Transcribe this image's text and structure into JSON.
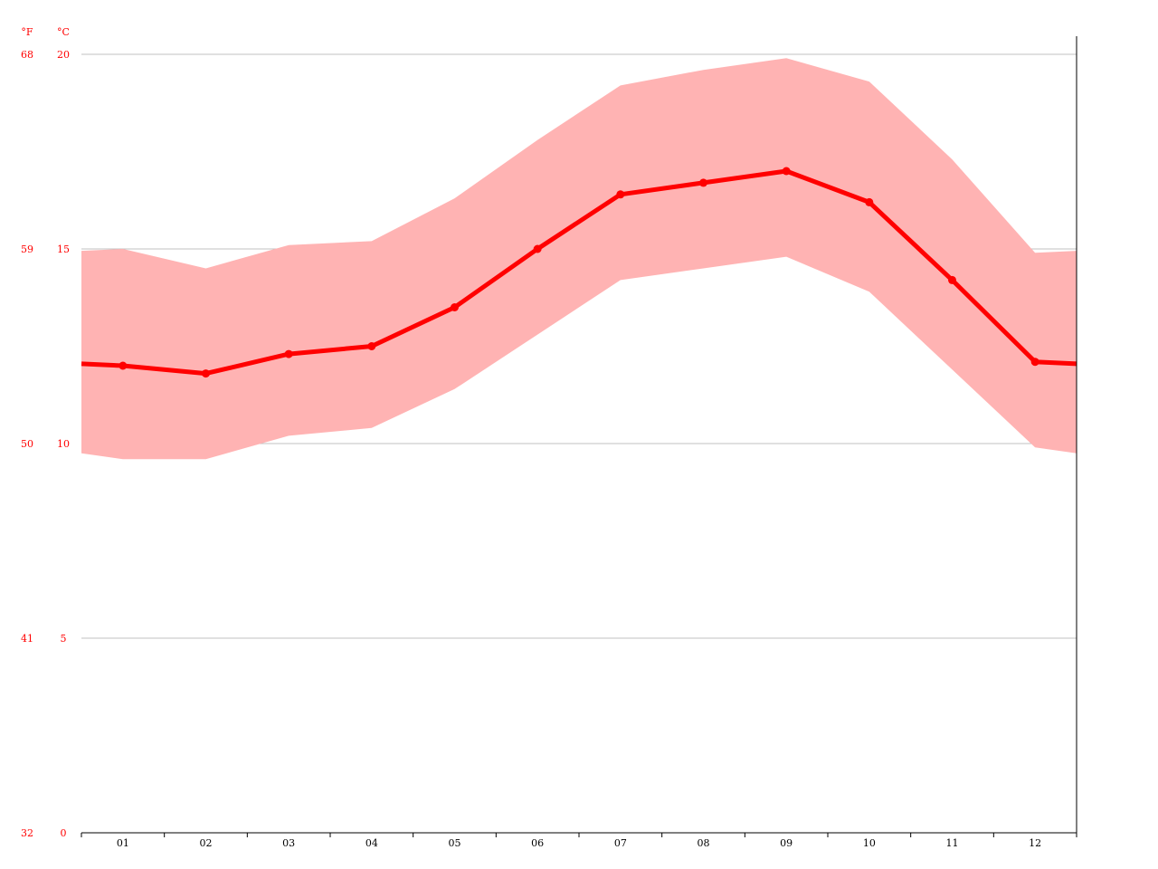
{
  "chart_data": {
    "type": "line",
    "categories": [
      "01",
      "02",
      "03",
      "04",
      "05",
      "06",
      "07",
      "08",
      "09",
      "10",
      "11",
      "12"
    ],
    "series": [
      {
        "values": [
          12.0,
          11.8,
          12.3,
          12.5,
          13.5,
          15.0,
          16.4,
          16.7,
          17.0,
          16.2,
          14.2,
          12.1
        ]
      }
    ],
    "band": {
      "low": [
        9.6,
        9.6,
        10.2,
        10.4,
        11.4,
        12.8,
        14.2,
        14.5,
        14.8,
        13.9,
        11.9,
        9.9
      ],
      "high": [
        15.0,
        14.5,
        15.1,
        15.2,
        16.3,
        17.8,
        19.2,
        19.6,
        19.9,
        19.3,
        17.3,
        14.9
      ]
    },
    "y_celsius": {
      "unit": "°C",
      "ticks": [
        "0",
        "5",
        "10",
        "15",
        "20"
      ],
      "ylim": [
        0,
        20
      ]
    },
    "y_fahrenheit": {
      "unit": "°F",
      "ticks": [
        "32",
        "41",
        "50",
        "59",
        "68"
      ]
    },
    "grid": true,
    "colors": {
      "line": "#ff0000",
      "band": "#ffb3b3",
      "axis_text": "#ff0000",
      "grid": "#c0c0c0"
    }
  }
}
